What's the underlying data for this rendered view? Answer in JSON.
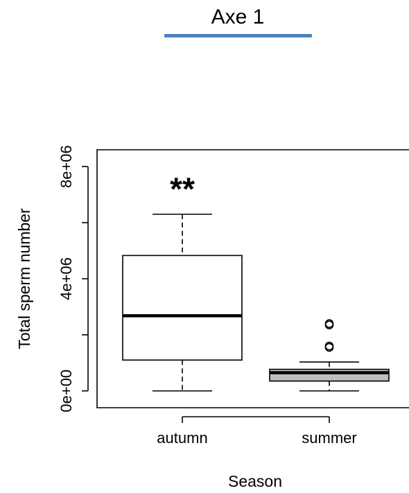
{
  "slide": {
    "title": "Axe 1",
    "accent_color": "#4f81bd"
  },
  "chart_data": {
    "type": "boxplot",
    "xlabel": "Season",
    "ylabel": "Total sperm number",
    "ylim": [
      -600000,
      8600000
    ],
    "yticks": [
      0,
      2000000,
      4000000,
      6000000,
      8000000
    ],
    "ytick_labels": [
      "0e+00",
      "",
      "4e+06",
      "",
      "8e+06"
    ],
    "categories": [
      "autumn",
      "summer"
    ],
    "boxes": [
      {
        "name": "autumn",
        "whisker_low": 0,
        "q1": 1100000,
        "median": 2680000,
        "q3": 4830000,
        "whisker_high": 6300000,
        "outliers": [],
        "fill": "#ffffff"
      },
      {
        "name": "summer",
        "whisker_low": 0,
        "q1": 350000,
        "median": 650000,
        "q3": 770000,
        "whisker_high": 1030000,
        "outliers": [
          1550000,
          1600000,
          2350000,
          2400000
        ],
        "fill": "#bebebe"
      }
    ],
    "annotations": [
      {
        "text": "**",
        "category": "autumn",
        "y": 7200000
      }
    ]
  }
}
